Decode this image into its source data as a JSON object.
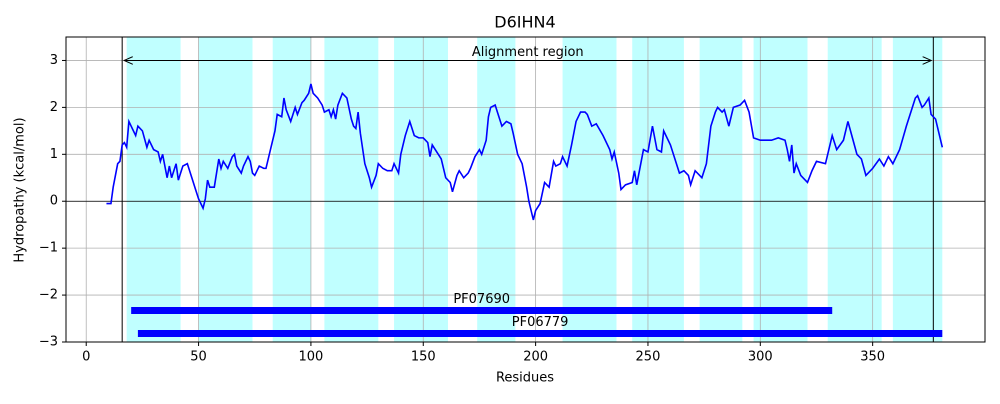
{
  "chart_data": {
    "type": "line",
    "title": "D6IHN4",
    "x_label": "Residues",
    "y_label": "Hydropathy (kcal/mol)",
    "color": "#0000ff",
    "grid": true,
    "zero_line": 0,
    "xlim": [
      -9,
      400
    ],
    "ylim": [
      -3,
      3.5
    ],
    "xticks": [
      0,
      50,
      100,
      150,
      200,
      250,
      300,
      350
    ],
    "yticks": [
      {
        "value": -3,
        "label": "−3"
      },
      {
        "value": -2,
        "label": "−2"
      },
      {
        "value": -1,
        "label": "−1"
      },
      0,
      1,
      2,
      3
    ],
    "x": [
      9,
      11,
      12,
      14,
      15,
      16,
      17,
      18,
      19,
      21,
      22,
      23,
      25,
      27,
      28,
      30,
      32,
      33,
      34,
      36,
      37,
      38,
      40,
      41,
      43,
      45,
      47,
      49,
      50,
      52,
      53,
      54,
      55,
      57,
      59,
      60,
      61,
      63,
      65,
      66,
      67,
      69,
      70,
      72,
      73,
      74,
      75,
      77,
      79,
      80,
      82,
      84,
      85,
      87,
      88,
      89,
      91,
      93,
      94,
      96,
      97,
      99,
      100,
      101,
      103,
      105,
      106,
      108,
      109,
      110,
      111,
      112,
      114,
      116,
      118,
      119,
      120,
      121,
      122,
      124,
      126,
      127,
      129,
      130,
      132,
      134,
      136,
      137,
      139,
      140,
      142,
      144,
      146,
      148,
      150,
      152,
      153,
      154,
      156,
      158,
      160,
      162,
      163,
      165,
      166,
      168,
      170,
      171,
      173,
      175,
      176,
      178,
      179,
      180,
      182,
      183,
      185,
      187,
      189,
      190,
      192,
      194,
      196,
      197,
      199,
      200,
      202,
      204,
      206,
      208,
      209,
      211,
      212,
      214,
      216,
      218,
      220,
      222,
      223,
      225,
      227,
      230,
      233,
      234,
      235,
      237,
      238,
      240,
      243,
      244,
      245,
      248,
      250,
      252,
      254,
      256,
      257,
      260,
      262,
      264,
      266,
      268,
      269,
      271,
      274,
      276,
      278,
      280,
      281,
      283,
      284,
      286,
      288,
      291,
      293,
      295,
      297,
      300,
      305,
      308,
      311,
      312,
      313,
      314,
      315,
      316,
      318,
      321,
      323,
      325,
      329,
      332,
      334,
      337,
      339,
      341,
      343,
      345,
      347,
      350,
      353,
      355,
      357,
      359,
      362,
      365,
      369,
      370,
      372,
      373,
      375,
      376,
      378,
      381
    ],
    "values": [
      -0.05,
      -0.05,
      0.3,
      0.8,
      0.85,
      1.2,
      1.25,
      1.15,
      1.7,
      1.5,
      1.4,
      1.6,
      1.5,
      1.15,
      1.3,
      1.1,
      1.05,
      0.85,
      1.0,
      0.5,
      0.75,
      0.5,
      0.8,
      0.45,
      0.75,
      0.8,
      0.5,
      0.2,
      0.05,
      -0.15,
      0.05,
      0.45,
      0.3,
      0.3,
      0.9,
      0.7,
      0.85,
      0.7,
      0.95,
      1.0,
      0.75,
      0.6,
      0.75,
      0.95,
      0.85,
      0.6,
      0.55,
      0.75,
      0.7,
      0.7,
      1.1,
      1.5,
      1.85,
      1.8,
      2.2,
      1.95,
      1.7,
      2.0,
      1.85,
      2.1,
      2.15,
      2.3,
      2.5,
      2.3,
      2.2,
      2.05,
      1.9,
      1.95,
      1.8,
      1.95,
      1.75,
      2.05,
      2.3,
      2.2,
      1.75,
      1.6,
      1.55,
      1.9,
      1.45,
      0.8,
      0.5,
      0.3,
      0.55,
      0.8,
      0.7,
      0.65,
      0.65,
      0.8,
      0.6,
      1.0,
      1.4,
      1.7,
      1.4,
      1.35,
      1.35,
      1.25,
      0.95,
      1.2,
      1.05,
      0.9,
      0.5,
      0.4,
      0.2,
      0.55,
      0.65,
      0.5,
      0.6,
      0.7,
      0.95,
      1.1,
      1.0,
      1.3,
      1.8,
      2.0,
      2.05,
      1.9,
      1.6,
      1.7,
      1.65,
      1.45,
      1.0,
      0.8,
      0.3,
      0.0,
      -0.4,
      -0.2,
      -0.05,
      0.4,
      0.3,
      0.85,
      0.75,
      0.8,
      0.95,
      0.75,
      1.2,
      1.7,
      1.9,
      1.9,
      1.85,
      1.6,
      1.65,
      1.4,
      1.1,
      0.9,
      1.05,
      0.6,
      0.25,
      0.35,
      0.4,
      0.65,
      0.35,
      1.1,
      1.05,
      1.6,
      1.1,
      1.05,
      1.5,
      1.2,
      0.9,
      0.6,
      0.65,
      0.55,
      0.35,
      0.65,
      0.5,
      0.8,
      1.6,
      1.9,
      2.0,
      1.9,
      1.95,
      1.6,
      2.0,
      2.05,
      2.15,
      1.9,
      1.35,
      1.3,
      1.3,
      1.35,
      1.3,
      1.1,
      0.85,
      1.2,
      0.6,
      0.8,
      0.55,
      0.4,
      0.65,
      0.85,
      0.8,
      1.4,
      1.1,
      1.3,
      1.7,
      1.35,
      1.0,
      0.9,
      0.55,
      0.7,
      0.9,
      0.75,
      0.95,
      0.8,
      1.1,
      1.6,
      2.2,
      2.25,
      2.0,
      2.05,
      2.2,
      1.85,
      1.75,
      1.15
    ],
    "region_color": "#c0ffff",
    "regions": [
      [
        18,
        42
      ],
      [
        50,
        74
      ],
      [
        83,
        100
      ],
      [
        106,
        130
      ],
      [
        137,
        161
      ],
      [
        174,
        191
      ],
      [
        212,
        236
      ],
      [
        243,
        266
      ],
      [
        273,
        292
      ],
      [
        297,
        321
      ],
      [
        330,
        354
      ],
      [
        359,
        381
      ]
    ],
    "vlines": [
      16,
      377
    ],
    "annotation": {
      "text": "Alignment region",
      "x": [
        16,
        377
      ],
      "y": 3
    },
    "domain_color": "#0000ff",
    "domains": [
      {
        "name": "PF07690",
        "start": 20,
        "end": 332,
        "y": -2.33
      },
      {
        "name": "PF06779",
        "start": 23,
        "end": 381,
        "y": -2.82
      }
    ]
  }
}
